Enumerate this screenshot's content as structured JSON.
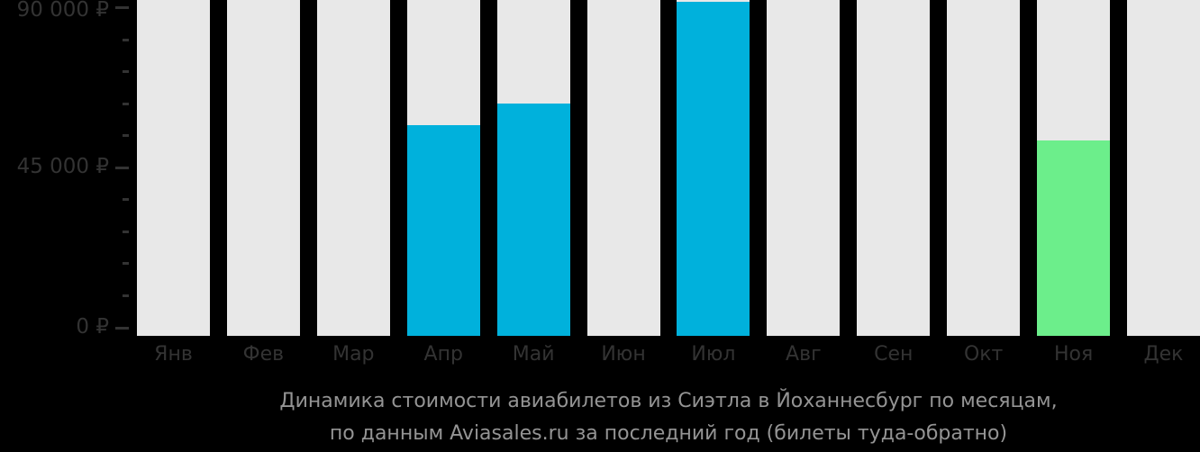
{
  "chart_data": {
    "type": "bar",
    "title": "Динамика стоимости авиабилетов из Сиэтла в Йоханнесбург по месяцам,",
    "subtitle": "по данным Aviasales.ru за последний год (билеты туда-обратно)",
    "categories": [
      "Янв",
      "Фев",
      "Мар",
      "Апр",
      "Май",
      "Июн",
      "Июл",
      "Авг",
      "Сен",
      "Окт",
      "Ноя",
      "Дек"
    ],
    "month_keys": [
      "jan",
      "feb",
      "mar",
      "apr",
      "may",
      "jun",
      "jul",
      "aug",
      "sep",
      "oct",
      "nov",
      "dec"
    ],
    "values": [
      null,
      null,
      null,
      57000,
      63000,
      null,
      91600,
      null,
      null,
      null,
      52600,
      null
    ],
    "bar_colors": [
      null,
      null,
      null,
      "#00B1DC",
      "#00B1DC",
      null,
      "#00B1DC",
      null,
      null,
      null,
      "#6CEE8B",
      null
    ],
    "currency": "₽",
    "ylim": [
      0,
      90000
    ],
    "ytick_major_step": 45000,
    "ytick_minor_step": 9000,
    "ytick_labels": [
      "0 ₽",
      "45 000 ₽",
      "90 000 ₽"
    ],
    "xlabel": "",
    "ylabel": "",
    "legend": null,
    "grid": false,
    "colors": {
      "background": "#000000",
      "column_bg": "#E8E8E8",
      "bar_blue": "#00B1DC",
      "bar_green": "#6CEE8B",
      "axis_text": "#333333",
      "caption_text": "#949494"
    }
  }
}
